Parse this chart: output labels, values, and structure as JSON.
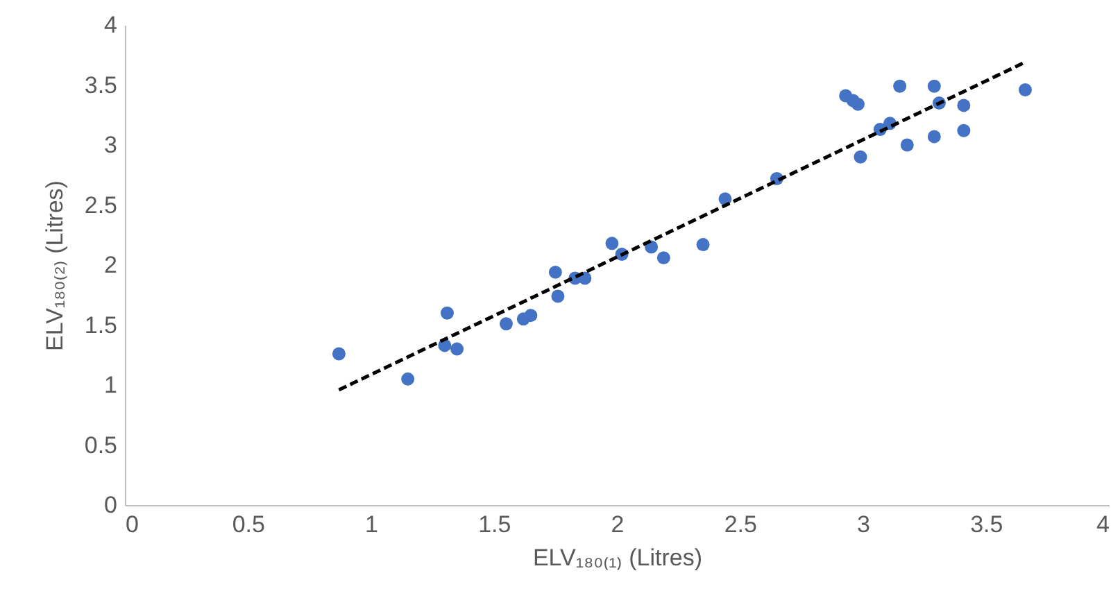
{
  "chart_data": {
    "type": "scatter",
    "xlabel": "ELV₁₈₀₍₁₎ (Litres)",
    "ylabel": "ELV₁₈₀₍₂₎ (Litres)",
    "xlim": [
      0,
      4
    ],
    "xticks": [
      0,
      0.5,
      1,
      1.5,
      2,
      2.5,
      3,
      3.5,
      4
    ],
    "ylim": [
      0,
      4
    ],
    "yticks": [
      0,
      0.5,
      1,
      1.5,
      2,
      2.5,
      3,
      3.5,
      4
    ],
    "grid": false,
    "marker": "circle",
    "series": [
      {
        "color": "#4472c4",
        "x": [
          0.87,
          1.15,
          1.31,
          1.3,
          1.35,
          1.55,
          1.62,
          1.65,
          1.75,
          1.76,
          1.83,
          1.87,
          1.98,
          2.02,
          2.14,
          2.19,
          2.35,
          2.44,
          2.65,
          2.93,
          2.96,
          2.98,
          2.99,
          3.07,
          3.11,
          3.15,
          3.18,
          3.29,
          3.29,
          3.31,
          3.41,
          3.41,
          3.66
        ],
        "values": [
          1.26,
          1.05,
          1.6,
          1.33,
          1.3,
          1.51,
          1.55,
          1.58,
          1.94,
          1.74,
          1.89,
          1.89,
          2.18,
          2.09,
          2.15,
          2.06,
          2.17,
          2.55,
          2.72,
          3.41,
          3.37,
          3.34,
          2.9,
          3.13,
          3.18,
          3.49,
          3.0,
          3.49,
          3.07,
          3.35,
          3.33,
          3.12,
          3.46
        ]
      },
      {
        "type": "line",
        "color": "#000000",
        "line_style": "dashed",
        "marker": "none",
        "x": [
          0.87,
          3.66
        ],
        "values": [
          0.96,
          3.69
        ]
      }
    ]
  }
}
